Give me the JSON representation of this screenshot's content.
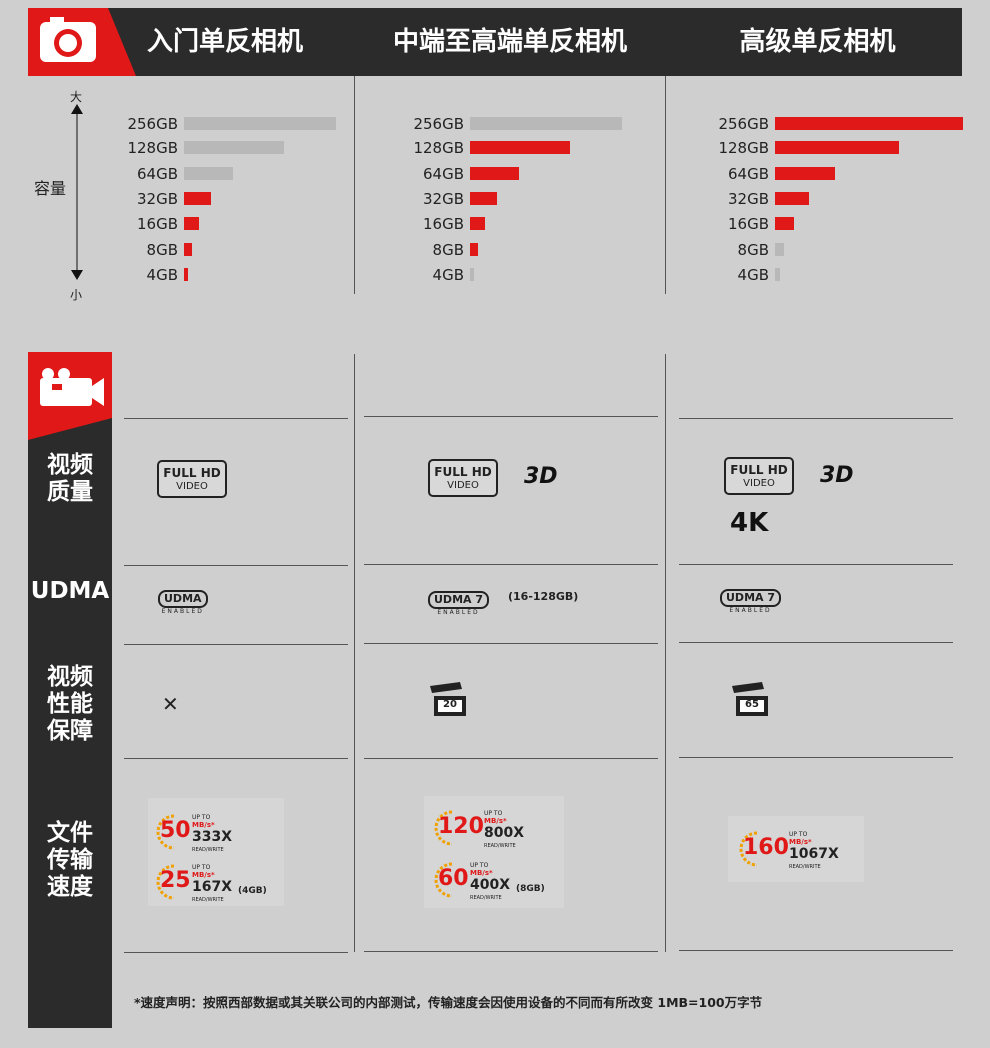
{
  "colors": {
    "accent": "#e01818",
    "dark": "#2b2b2b",
    "neutral_bar": "#b8b8b8"
  },
  "header": {
    "icon": "camera-icon",
    "columns": [
      "入门单反相机",
      "中端至高端单反相机",
      "高级单反相机"
    ]
  },
  "capacity": {
    "top_label": "大",
    "axis_label": "容量",
    "bottom_label": "小",
    "sizes": [
      "256GB",
      "128GB",
      "64GB",
      "32GB",
      "16GB",
      "8GB",
      "4GB"
    ],
    "columns": [
      {
        "bars": [
          {
            "value": 256,
            "highlight": false
          },
          {
            "value": 128,
            "highlight": false
          },
          {
            "value": 64,
            "highlight": false
          },
          {
            "value": 32,
            "highlight": true
          },
          {
            "value": 16,
            "highlight": true
          },
          {
            "value": 8,
            "highlight": true
          },
          {
            "value": 4,
            "highlight": true
          }
        ]
      },
      {
        "bars": [
          {
            "value": 256,
            "highlight": false
          },
          {
            "value": 128,
            "highlight": true
          },
          {
            "value": 64,
            "highlight": true
          },
          {
            "value": 32,
            "highlight": true
          },
          {
            "value": 16,
            "highlight": true
          },
          {
            "value": 8,
            "highlight": true
          },
          {
            "value": 4,
            "highlight": false
          }
        ]
      },
      {
        "bars": [
          {
            "value": 256,
            "highlight": true
          },
          {
            "value": 128,
            "highlight": true
          },
          {
            "value": 64,
            "highlight": true
          },
          {
            "value": 32,
            "highlight": true
          },
          {
            "value": 16,
            "highlight": true
          },
          {
            "value": 8,
            "highlight": false
          },
          {
            "value": 4,
            "highlight": false
          }
        ]
      }
    ]
  },
  "video": {
    "icon": "video-camera-icon"
  },
  "rows": {
    "quality": "视频\n质量",
    "udma": "UDMA",
    "performance": "视频\n性能\n保障",
    "speed": "文件\n传输\n速度"
  },
  "quality": {
    "fhd_line1": "FULL HD",
    "fhd_line2": "VIDEO",
    "three_d": "3D",
    "four_k": "4K"
  },
  "udma": {
    "basic": "UDMA",
    "mode7": "UDMA 7",
    "enabled": "ENABLED",
    "mid_note": "(16-128GB)"
  },
  "performance": {
    "none": "✕",
    "mid": "20",
    "high": "65"
  },
  "speed": {
    "up_to": "UP TO",
    "unit": "MB/s*",
    "rw": "READ/WRITE",
    "entry": [
      {
        "num": "50",
        "x": "333X"
      },
      {
        "num": "25",
        "x": "167X",
        "note": "(4GB)"
      }
    ],
    "mid": [
      {
        "num": "120",
        "x": "800X"
      },
      {
        "num": "60",
        "x": "400X",
        "note": "(8GB)"
      }
    ],
    "high": [
      {
        "num": "160",
        "x": "1067X"
      }
    ]
  },
  "footnote": "*速度声明：按照西部数据或其关联公司的内部测试，传输速度会因使用设备的不同而有所改变 1MB=100万字节"
}
